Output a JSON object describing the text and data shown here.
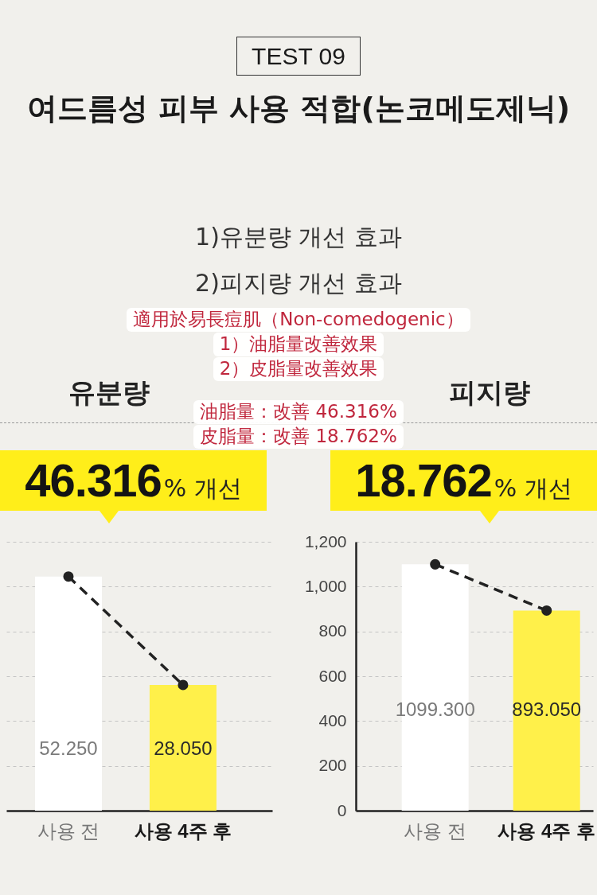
{
  "chart_data": [
    {
      "type": "bar",
      "title": "유분량",
      "subtitle": "46.316% 개선",
      "annotations": [
        "TEST 09",
        "여드름성 피부 사용 적합(논코메도제닉)",
        "1)유분량 개선 효과",
        "2)피지량 개선 효과",
        "適用於易長痘肌（Non-comedogenic）",
        "1）油脂量改善效果",
        "2）皮脂量改善效果",
        "油脂量：改善 46.316%",
        "皮脂量：改善 18.762%"
      ],
      "categories": [
        "사용 전",
        "사용 4주 후"
      ],
      "series": [
        {
          "type": "bar",
          "colors": [
            "#ffffff",
            "#fff04a"
          ],
          "values": [
            52.25,
            28.05
          ],
          "value_labels": [
            "52.250",
            "28.050"
          ]
        },
        {
          "type": "line",
          "color": "#222222",
          "values": [
            52.25,
            28.05
          ]
        }
      ],
      "ylim": [
        0,
        60
      ],
      "yticks": [
        {
          "value": 0,
          "label": null
        },
        {
          "value": 10,
          "label": null
        },
        {
          "value": 20,
          "label": null
        },
        {
          "value": 30,
          "label": null
        },
        {
          "value": 40,
          "label": null
        },
        {
          "value": 50,
          "label": null
        },
        {
          "value": 60,
          "label": null
        }
      ],
      "tick_labels": "x",
      "grid": "y",
      "marker": "circle",
      "line_style": "dashed"
    },
    {
      "type": "bar",
      "title": "피지량",
      "subtitle": "18.762% 개선",
      "categories": [
        "사용 전",
        "사용 4주 후"
      ],
      "series": [
        {
          "type": "bar",
          "colors": [
            "#ffffff",
            "#fff04a"
          ],
          "values": [
            1099.3,
            893.05
          ],
          "value_labels": [
            "1099.300",
            "893.050"
          ]
        },
        {
          "type": "line",
          "color": "#222222",
          "values": [
            1099.3,
            893.05
          ]
        }
      ],
      "ylim": [
        0,
        1200
      ],
      "yticks": [
        0,
        200,
        400,
        600,
        800,
        {
          "value": 1000,
          "label": "1,000"
        },
        {
          "value": 1200,
          "label": "1,200"
        }
      ],
      "grid": "y",
      "marker": "circle",
      "line_style": "dashed"
    }
  ]
}
